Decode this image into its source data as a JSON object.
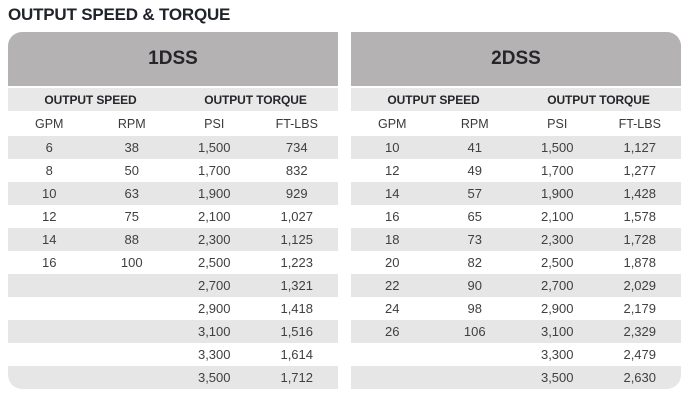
{
  "title": "OUTPUT SPEED & TORQUE",
  "colors": {
    "header_band": "#b4b2b2",
    "subheader_band": "#e9e8e8",
    "row_stripe": "#e7e6e6",
    "heading_text": "#20232a",
    "data_text": "#404042"
  },
  "tables": [
    {
      "name": "1DSS",
      "group_headers": [
        "OUTPUT SPEED",
        "OUTPUT TORQUE"
      ],
      "columns": [
        "GPM",
        "RPM",
        "PSI",
        "FT-LBS"
      ],
      "rows": [
        [
          "6",
          "38",
          "1,500",
          "734"
        ],
        [
          "8",
          "50",
          "1,700",
          "832"
        ],
        [
          "10",
          "63",
          "1,900",
          "929"
        ],
        [
          "12",
          "75",
          "2,100",
          "1,027"
        ],
        [
          "14",
          "88",
          "2,300",
          "1,125"
        ],
        [
          "16",
          "100",
          "2,500",
          "1,223"
        ],
        [
          "",
          "",
          "2,700",
          "1,321"
        ],
        [
          "",
          "",
          "2,900",
          "1,418"
        ],
        [
          "",
          "",
          "3,100",
          "1,516"
        ],
        [
          "",
          "",
          "3,300",
          "1,614"
        ],
        [
          "",
          "",
          "3,500",
          "1,712"
        ]
      ]
    },
    {
      "name": "2DSS",
      "group_headers": [
        "OUTPUT SPEED",
        "OUTPUT TORQUE"
      ],
      "columns": [
        "GPM",
        "RPM",
        "PSI",
        "FT-LBS"
      ],
      "rows": [
        [
          "10",
          "41",
          "1,500",
          "1,127"
        ],
        [
          "12",
          "49",
          "1,700",
          "1,277"
        ],
        [
          "14",
          "57",
          "1,900",
          "1,428"
        ],
        [
          "16",
          "65",
          "2,100",
          "1,578"
        ],
        [
          "18",
          "73",
          "2,300",
          "1,728"
        ],
        [
          "20",
          "82",
          "2,500",
          "1,878"
        ],
        [
          "22",
          "90",
          "2,700",
          "2,029"
        ],
        [
          "24",
          "98",
          "2,900",
          "2,179"
        ],
        [
          "26",
          "106",
          "3,100",
          "2,329"
        ],
        [
          "",
          "",
          "3,300",
          "2,479"
        ],
        [
          "",
          "",
          "3,500",
          "2,630"
        ]
      ]
    }
  ]
}
